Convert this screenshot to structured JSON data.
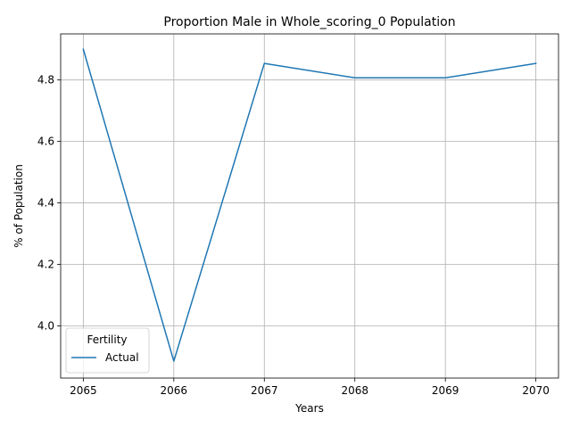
{
  "chart_data": {
    "type": "line",
    "title": "Proportion Male in Whole_scoring_0 Population",
    "xlabel": "Years",
    "ylabel": "% of Population",
    "x": [
      2065,
      2066,
      2067,
      2068,
      2069,
      2070
    ],
    "xticks": [
      "2065",
      "2066",
      "2067",
      "2068",
      "2069",
      "2070"
    ],
    "yticks": [
      "4.0",
      "4.2",
      "4.4",
      "4.6",
      "4.8"
    ],
    "ylim": [
      3.83,
      4.95
    ],
    "xlim": [
      2064.75,
      2070.25
    ],
    "grid": true,
    "legend": {
      "title": "Fertility",
      "placement": "lower-left"
    },
    "series": [
      {
        "name": "Actual",
        "color": "#1f77b4",
        "values": [
          4.9,
          3.885,
          4.854,
          4.807,
          4.807,
          4.854
        ]
      }
    ]
  }
}
